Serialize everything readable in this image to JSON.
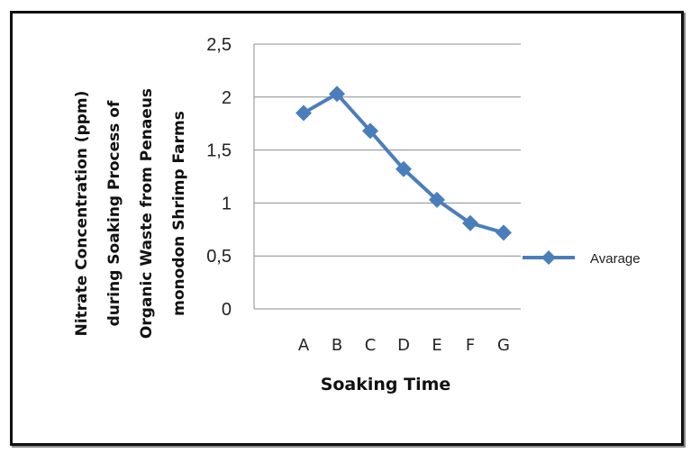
{
  "chart_data": {
    "type": "line",
    "categories": [
      "A",
      "B",
      "C",
      "D",
      "E",
      "F",
      "G"
    ],
    "series": [
      {
        "name": "Avarage",
        "values": [
          1.85,
          2.03,
          1.68,
          1.32,
          1.03,
          0.81,
          0.72
        ],
        "color": "#4a7ebb"
      }
    ],
    "ylabel": "Nitrate Concentration (ppm) during Soaking Process of Organic Waste from Penaeus monodon Shrimp Farms",
    "ylabel_lines": [
      "Nitrate Concentration (ppm)",
      "during Soaking Process of",
      "Organic Waste from Penaeus",
      "monodon Shrimp Farms"
    ],
    "xlabel": "Soaking Time",
    "yticks": [
      "0",
      "0,5",
      "1",
      "1,5",
      "2",
      "2,5"
    ],
    "ylim": [
      0,
      2.5
    ],
    "grid": true,
    "legend_position": "right"
  }
}
